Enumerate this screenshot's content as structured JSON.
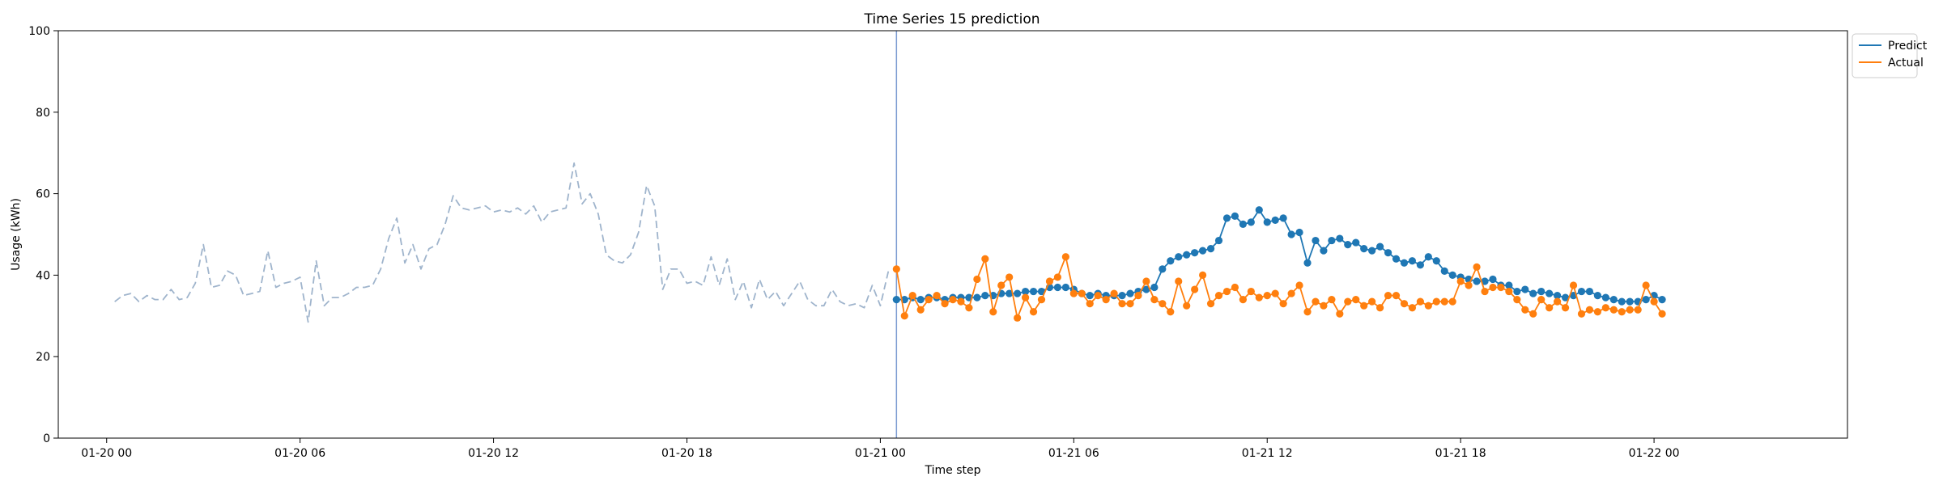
{
  "chart_data": {
    "type": "line",
    "title": "Time Series 15 prediction",
    "xlabel": "Time step",
    "ylabel": "Usage (kWh)",
    "ylim": [
      0,
      100
    ],
    "yticks": [
      0,
      20,
      40,
      60,
      80,
      100
    ],
    "xlim": [
      "2024-01-19T22:30",
      "2024-01-22T06:00"
    ],
    "xticks": [
      {
        "t": "2024-01-20T00:00",
        "label": "01-20 00"
      },
      {
        "t": "2024-01-20T06:00",
        "label": "01-20 06"
      },
      {
        "t": "2024-01-20T12:00",
        "label": "01-20 12"
      },
      {
        "t": "2024-01-20T18:00",
        "label": "01-20 18"
      },
      {
        "t": "2024-01-21T00:00",
        "label": "01-21 00"
      },
      {
        "t": "2024-01-21T06:00",
        "label": "01-21 06"
      },
      {
        "t": "2024-01-21T12:00",
        "label": "01-21 12"
      },
      {
        "t": "2024-01-21T18:00",
        "label": "01-21 18"
      },
      {
        "t": "2024-01-22T00:00",
        "label": "01-22 00"
      }
    ],
    "grid": false,
    "legend_position": "top-right outside",
    "split_time": "2024-01-21T00:30",
    "split_color": "#7b9bd1",
    "series": [
      {
        "name": "",
        "role": "history",
        "style": "dashed",
        "color": "#9fb4cc",
        "start": "2024-01-20T00:15",
        "step_minutes": 15,
        "values": [
          33.5,
          35.0,
          35.5,
          33.5,
          35.0,
          34.0,
          34.0,
          36.5,
          34.0,
          34.5,
          38.0,
          47.5,
          37.0,
          37.5,
          41.0,
          40.0,
          35.0,
          35.5,
          36.0,
          46.0,
          37.0,
          38.0,
          38.5,
          39.5,
          28.5,
          43.5,
          32.5,
          34.5,
          34.5,
          35.5,
          37.0,
          37.0,
          37.5,
          41.5,
          49.0,
          54.0,
          43.0,
          47.5,
          41.5,
          46.5,
          47.5,
          52.5,
          59.5,
          56.5,
          56.0,
          56.5,
          57.0,
          55.5,
          56.0,
          55.5,
          56.5,
          55.0,
          57.0,
          53.0,
          55.5,
          56.0,
          56.5,
          67.5,
          57.5,
          60.0,
          55.0,
          45.0,
          43.5,
          43.0,
          45.0,
          50.5,
          62.0,
          57.0,
          36.5,
          41.5,
          41.5,
          38.0,
          38.5,
          37.5,
          44.5,
          37.5,
          44.0,
          34.0,
          38.5,
          32.0,
          39.0,
          34.0,
          36.0,
          32.5,
          35.5,
          38.5,
          34.0,
          32.5,
          32.5,
          36.5,
          33.5,
          32.5,
          33.0,
          32.0,
          37.5,
          32.5,
          41.0
        ]
      },
      {
        "name": "Predict",
        "role": "prediction",
        "style": "solid-markers",
        "color": "#1f77b4",
        "start": "2024-01-21T00:30",
        "step_minutes": 15,
        "values": [
          34.0,
          34.0,
          34.5,
          34.0,
          34.5,
          34.5,
          34.0,
          34.5,
          34.5,
          34.5,
          34.5,
          35.0,
          35.0,
          35.5,
          35.5,
          35.5,
          36.0,
          36.0,
          36.0,
          37.0,
          37.0,
          37.0,
          36.5,
          35.5,
          35.0,
          35.5,
          35.0,
          35.0,
          35.0,
          35.5,
          36.0,
          36.5,
          37.0,
          41.5,
          43.5,
          44.5,
          45.0,
          45.5,
          46.0,
          46.5,
          48.5,
          54.0,
          54.5,
          52.5,
          53.0,
          56.0,
          53.0,
          53.5,
          54.0,
          50.0,
          50.5,
          43.0,
          48.5,
          46.0,
          48.5,
          49.0,
          47.5,
          48.0,
          46.5,
          46.0,
          47.0,
          45.5,
          44.0,
          43.0,
          43.5,
          42.5,
          44.5,
          43.5,
          41.0,
          40.0,
          39.5,
          39.0,
          38.5,
          38.5,
          39.0,
          37.5,
          37.5,
          36.0,
          36.5,
          35.5,
          36.0,
          35.5,
          35.0,
          34.5,
          35.0,
          36.0,
          36.0,
          35.0,
          34.5,
          34.0,
          33.5,
          33.5,
          33.5,
          34.0,
          35.0,
          34.0
        ]
      },
      {
        "name": "Actual",
        "role": "actual",
        "style": "solid-markers",
        "color": "#ff7f0e",
        "start": "2024-01-21T00:30",
        "step_minutes": 15,
        "values": [
          41.5,
          30.0,
          35.0,
          31.5,
          34.0,
          35.0,
          33.0,
          34.0,
          33.5,
          32.0,
          39.0,
          44.0,
          31.0,
          37.5,
          39.5,
          29.5,
          34.5,
          31.0,
          34.0,
          38.5,
          39.5,
          44.5,
          35.5,
          35.5,
          33.0,
          35.0,
          34.0,
          35.5,
          33.0,
          33.0,
          35.0,
          38.5,
          34.0,
          33.0,
          31.0,
          38.5,
          32.5,
          36.5,
          40.0,
          33.0,
          35.0,
          36.0,
          37.0,
          34.0,
          36.0,
          34.5,
          35.0,
          35.5,
          33.0,
          35.5,
          37.5,
          31.0,
          33.5,
          32.5,
          34.0,
          30.5,
          33.5,
          34.0,
          32.5,
          33.5,
          32.0,
          35.0,
          35.0,
          33.0,
          32.0,
          33.5,
          32.5,
          33.5,
          33.5,
          33.5,
          38.5,
          37.5,
          42.0,
          36.0,
          37.0,
          37.0,
          36.0,
          34.0,
          31.5,
          30.5,
          34.0,
          32.0,
          33.5,
          32.0,
          37.5,
          30.5,
          31.5,
          31.0,
          32.0,
          31.5,
          31.0,
          31.5,
          31.5,
          37.5,
          33.5,
          30.5
        ]
      }
    ]
  }
}
